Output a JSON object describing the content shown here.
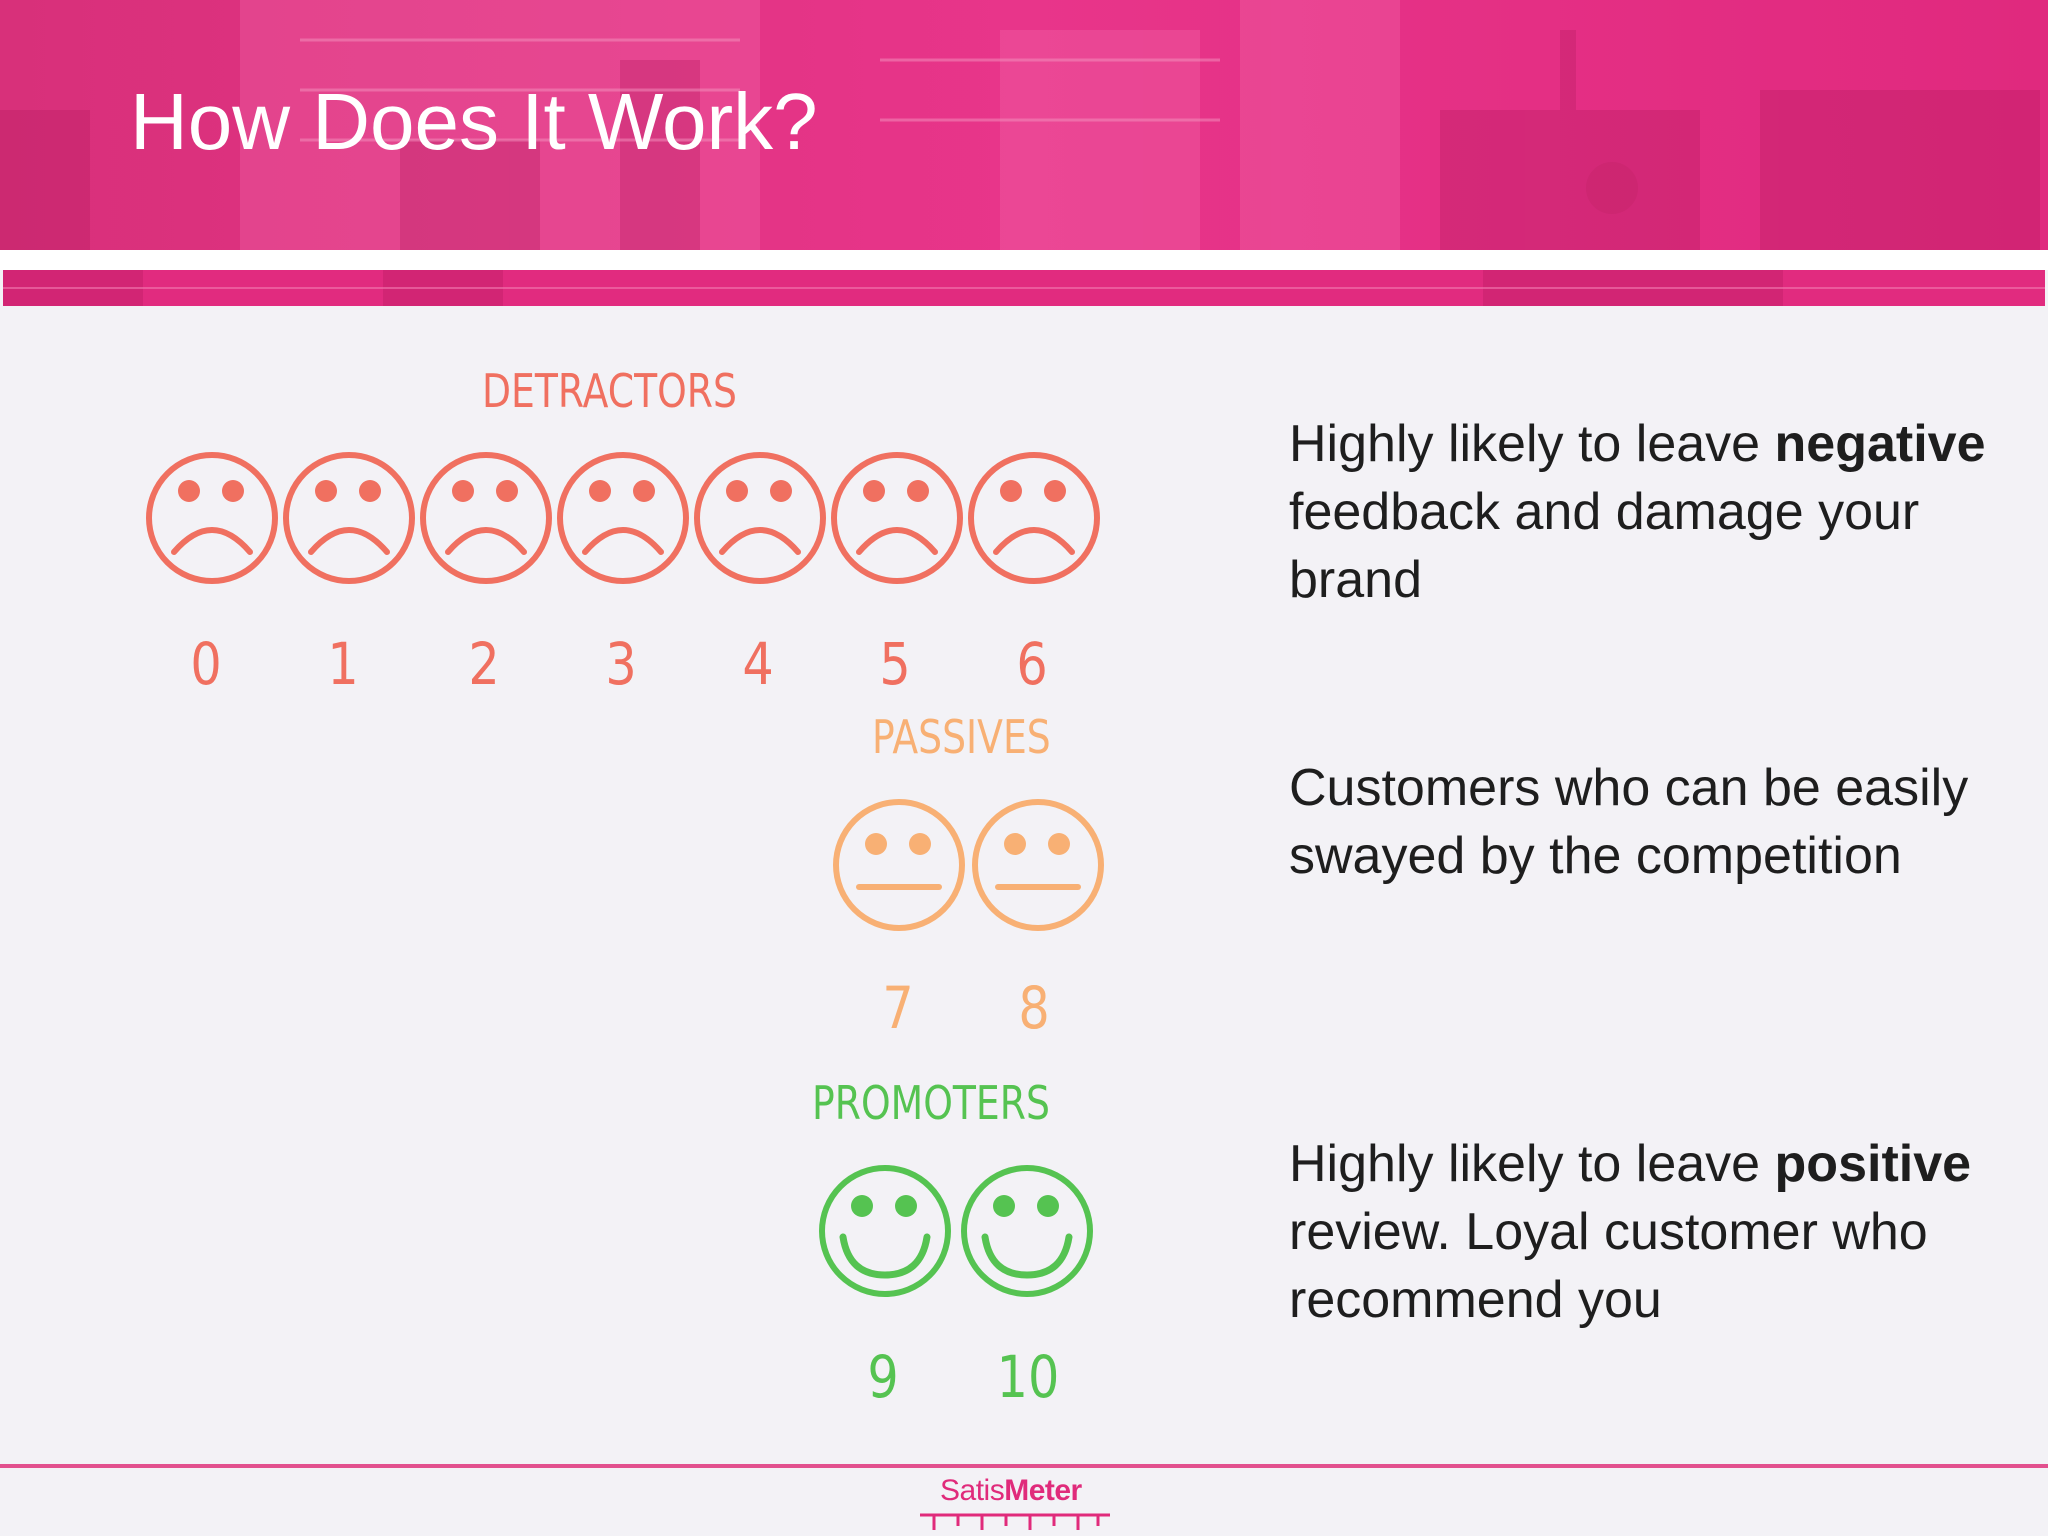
{
  "slide": {
    "title": "How Does It Work?"
  },
  "colors": {
    "banner": "#e2297f",
    "detractor": "#f07060",
    "passive": "#f8b074",
    "promoter": "#55c351",
    "brand": "#e02b7b"
  },
  "groups": [
    {
      "label": "DETRACTORS",
      "scores": [
        "0",
        "1",
        "2",
        "3",
        "4",
        "5",
        "6"
      ],
      "face_icon": "sad-face-icon",
      "description_parts": [
        {
          "text": "Highly likely to leave ",
          "bold": false
        },
        {
          "text": "negative",
          "bold": true
        },
        {
          "text": " feedback and damage your brand",
          "bold": false
        }
      ]
    },
    {
      "label": "PASSIVES",
      "scores": [
        "7",
        "8"
      ],
      "face_icon": "neutral-face-icon",
      "description_parts": [
        {
          "text": "Customers who can be easily swayed by the competition",
          "bold": false
        }
      ]
    },
    {
      "label": "PROMOTERS",
      "scores": [
        "9",
        "10"
      ],
      "face_icon": "happy-face-icon",
      "description_parts": [
        {
          "text": "Highly likely to leave ",
          "bold": false
        },
        {
          "text": "positive",
          "bold": true
        },
        {
          "text": " review. Loyal customer who recommend you",
          "bold": false
        }
      ]
    }
  ],
  "footer": {
    "logo_part1": "Satis",
    "logo_part2": "Meter"
  }
}
